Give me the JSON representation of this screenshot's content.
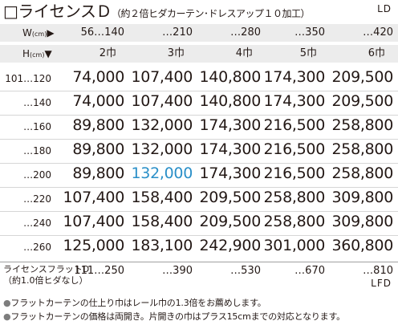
{
  "title": {
    "checkbox": "□",
    "main": "ライセンスＤ",
    "sub": "（約２倍ヒダカーテン･ドレスアップ１０加工）"
  },
  "code_top": "LD",
  "width_header": {
    "label": "W",
    "unit": "(cm)",
    "arrow": "▶",
    "values": [
      "56…140",
      "…210",
      "…280",
      "…350",
      "…420"
    ]
  },
  "height_header": {
    "label": "H",
    "unit": "(cm)",
    "arrow": "▼",
    "panels": [
      "2巾",
      "3巾",
      "4巾",
      "5巾",
      "6巾"
    ]
  },
  "rows": [
    {
      "height": "101…120",
      "prices": [
        "74,000",
        "107,400",
        "140,800",
        "174,300",
        "209,500"
      ]
    },
    {
      "height": "…140",
      "prices": [
        "74,000",
        "107,400",
        "140,800",
        "174,300",
        "209,500"
      ]
    },
    {
      "height": "…160",
      "prices": [
        "89,800",
        "132,000",
        "174,300",
        "216,500",
        "258,800"
      ]
    },
    {
      "height": "…180",
      "prices": [
        "89,800",
        "132,000",
        "174,300",
        "216,500",
        "258,800"
      ]
    },
    {
      "height": "…200",
      "prices": [
        "89,800",
        "132,000",
        "174,300",
        "216,500",
        "258,800"
      ]
    },
    {
      "height": "…220",
      "prices": [
        "107,400",
        "158,400",
        "209,500",
        "258,800",
        "309,800"
      ]
    },
    {
      "height": "…240",
      "prices": [
        "107,400",
        "158,400",
        "209,500",
        "258,800",
        "309,800"
      ]
    },
    {
      "height": "…260",
      "prices": [
        "125,000",
        "183,100",
        "242,900",
        "301,000",
        "360,800"
      ]
    }
  ],
  "highlight": {
    "row": 4,
    "col": 1,
    "color": "#2a8fc8"
  },
  "flat": {
    "label_line1": "ライセンスフラットD",
    "label_line2": "（約1.0倍ヒダなし）",
    "widths": [
      "111…250",
      "…390",
      "…530",
      "…670",
      "…810"
    ],
    "code": "LFD"
  },
  "notes": [
    "フラットカーテンの仕上り巾はレール巾の1.3倍をお薦めします。",
    "フラットカーテンの価格は両開き。片開きの巾はプラス15cmまでの対応となります。"
  ],
  "note_bullet": "●"
}
